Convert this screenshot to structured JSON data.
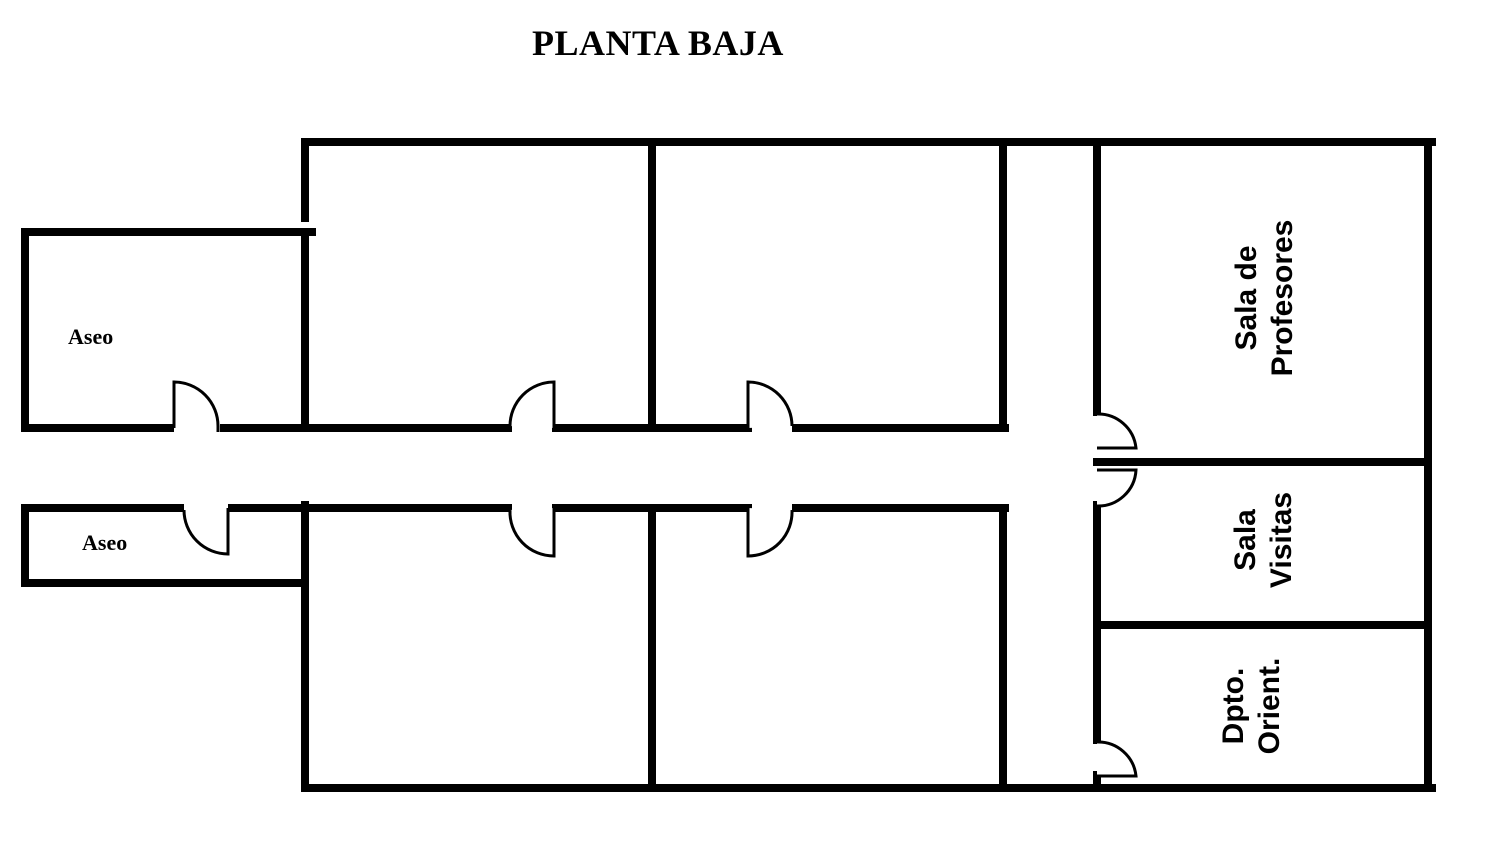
{
  "title": "PLANTA BAJA",
  "rooms": {
    "aseo_top": "Aseo",
    "aseo_bottom": "Aseo",
    "sala_profesores": [
      "Sala de",
      "Profesores"
    ],
    "sala_visitas": [
      "Sala",
      "Visitas"
    ],
    "dpto_orient": [
      "Dpto.",
      "Orient."
    ]
  },
  "colors": {
    "wall": "#000000",
    "background": "#ffffff"
  }
}
